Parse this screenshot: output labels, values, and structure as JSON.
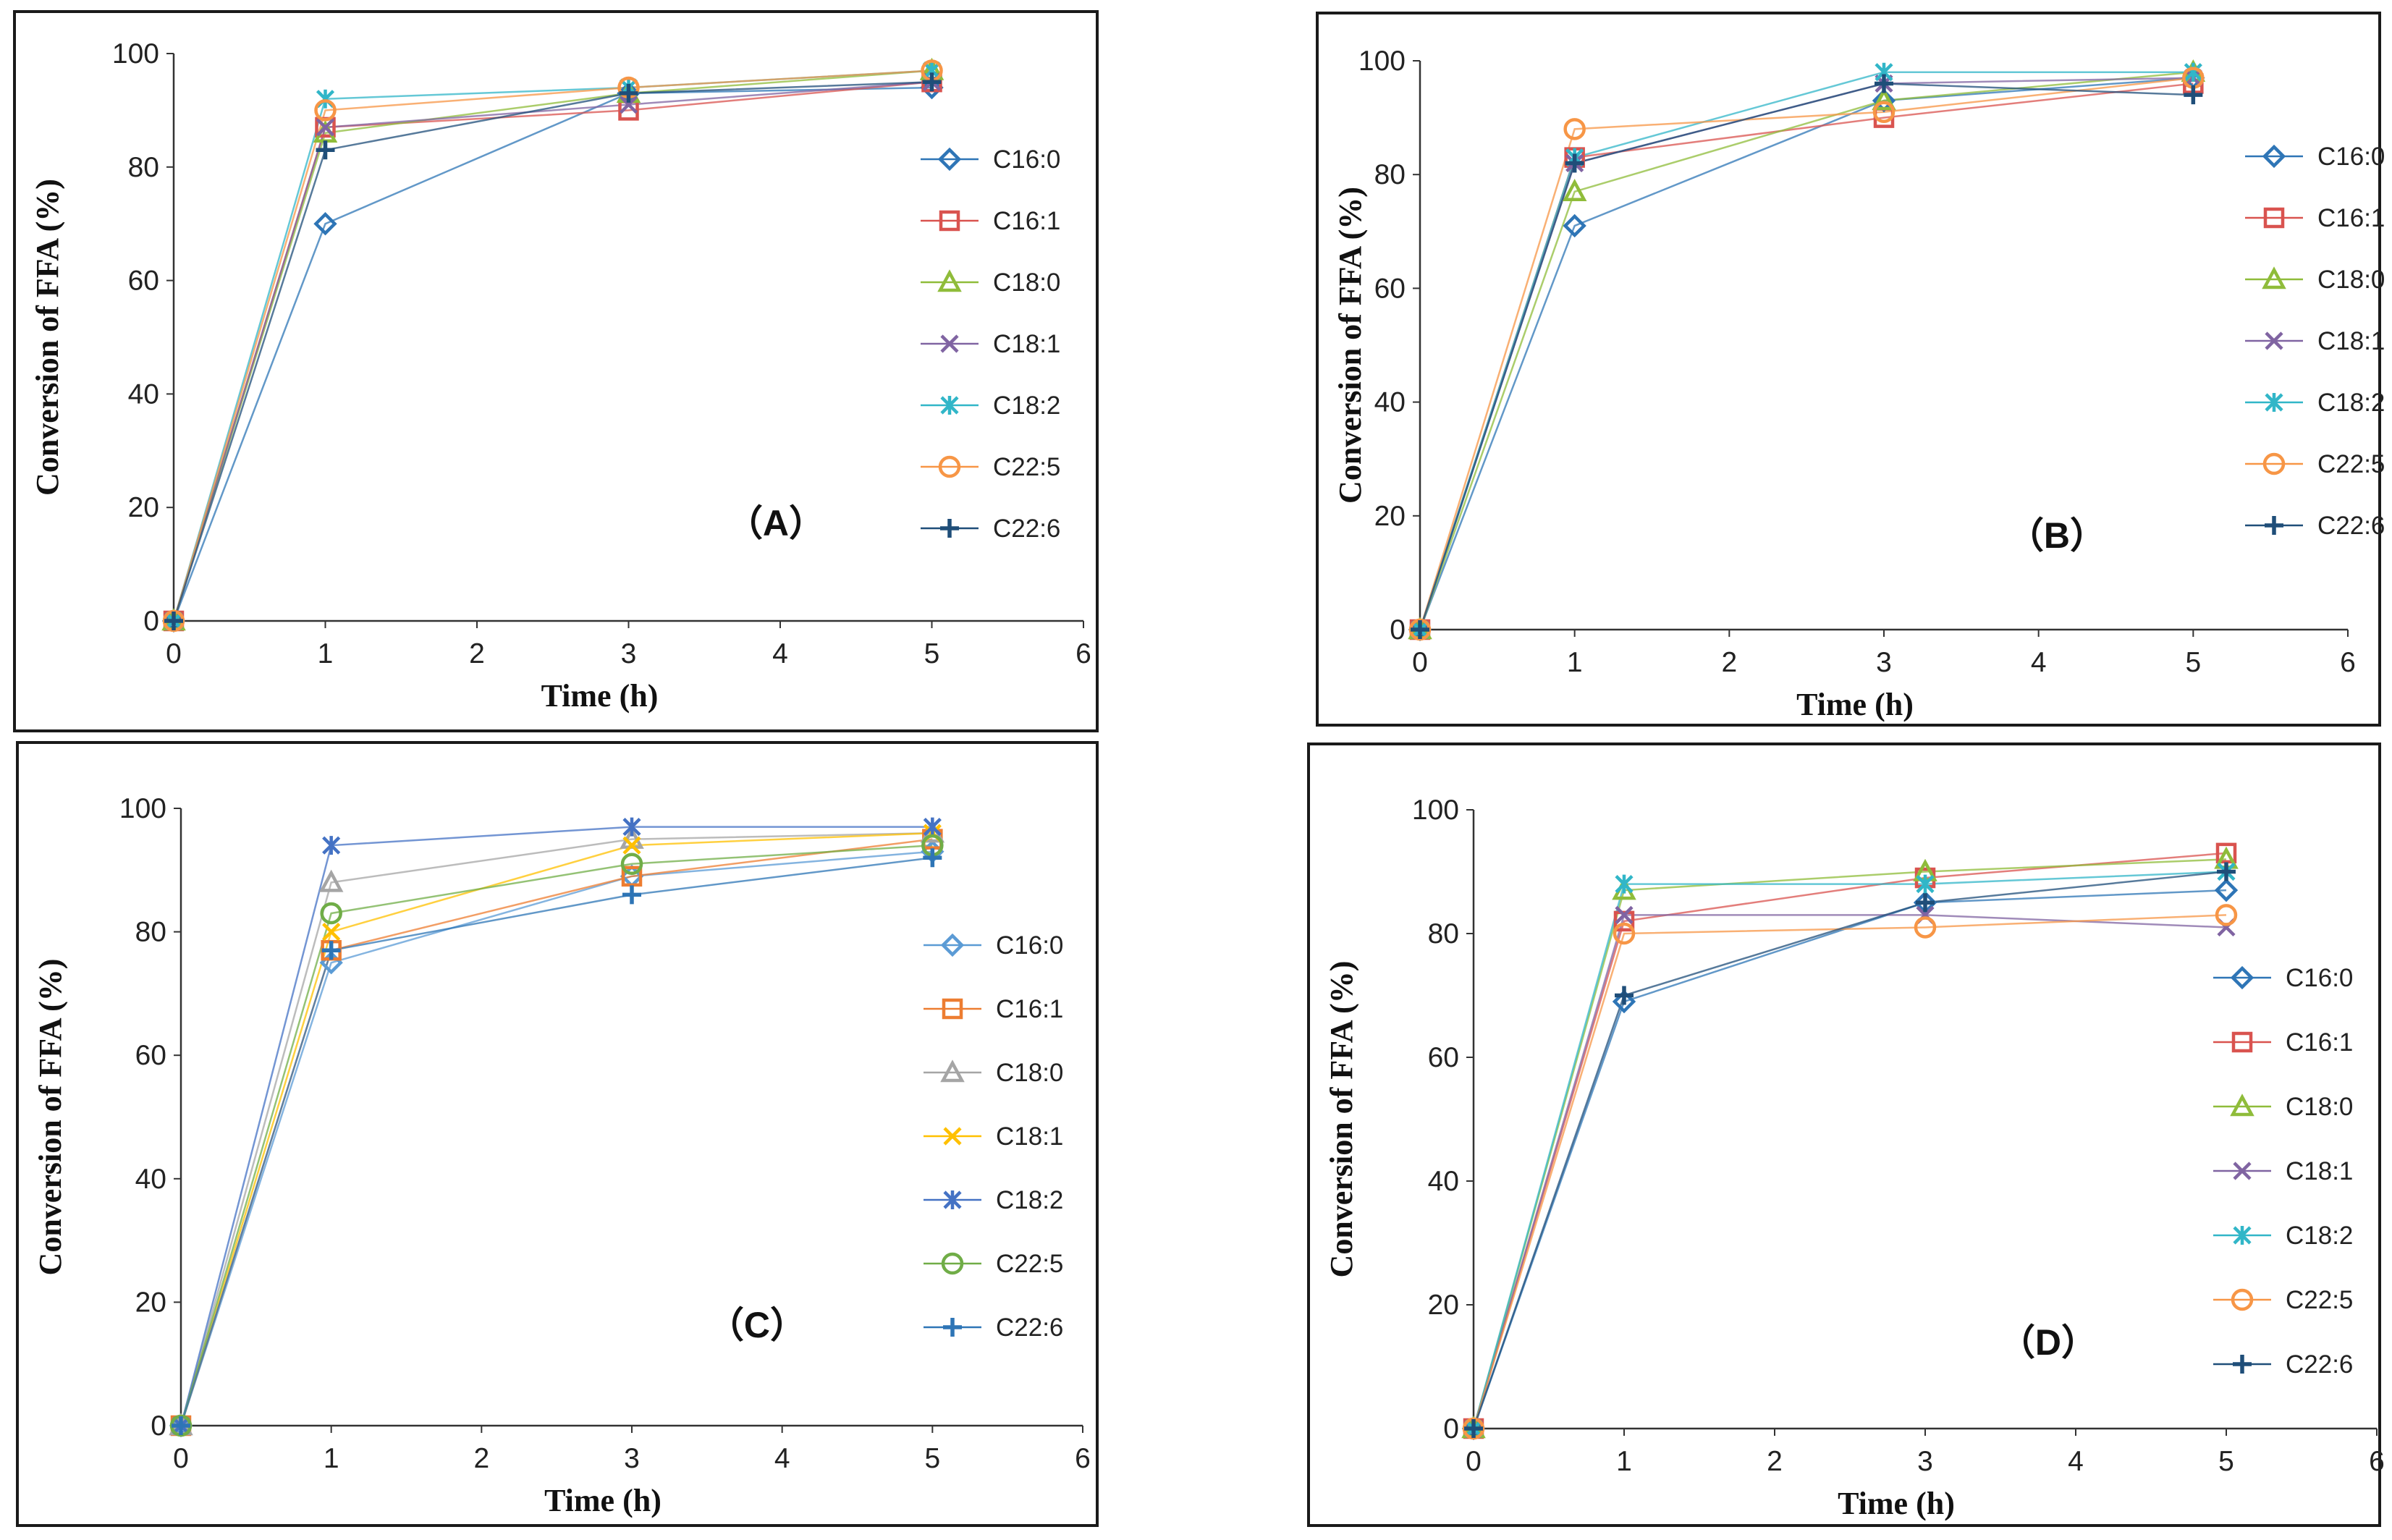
{
  "chart_data": [
    {
      "type": "line",
      "panel_label": "（A）",
      "xlabel": "Time  (h)",
      "ylabel": "Conversion of   FFA (%)",
      "xlim": [
        0,
        6
      ],
      "ylim": [
        0,
        100
      ],
      "xticks": [
        "0",
        "1",
        "2",
        "3",
        "4",
        "5",
        "6"
      ],
      "yticks": [
        "0",
        "20",
        "40",
        "60",
        "80",
        "100"
      ],
      "x": [
        0,
        1,
        3,
        5
      ],
      "legend_position": "right",
      "series": [
        {
          "name": "C16:0",
          "values": [
            0,
            70,
            93,
            94
          ],
          "color": "#2e75b6",
          "marker": "diamond"
        },
        {
          "name": "C16:1",
          "values": [
            0,
            87,
            90,
            95
          ],
          "color": "#d9534f",
          "marker": "square"
        },
        {
          "name": "C18:0",
          "values": [
            0,
            86,
            93,
            97
          ],
          "color": "#8fbc3a",
          "marker": "triangle"
        },
        {
          "name": "C18:1",
          "values": [
            0,
            87,
            91,
            95
          ],
          "color": "#8064a2",
          "marker": "x"
        },
        {
          "name": "C18:2",
          "values": [
            0,
            92,
            94,
            97
          ],
          "color": "#31b6c8",
          "marker": "star"
        },
        {
          "name": "C22:5",
          "values": [
            0,
            90,
            94,
            97
          ],
          "color": "#f79646",
          "marker": "circle"
        },
        {
          "name": "C22:6",
          "values": [
            0,
            83,
            93,
            95
          ],
          "color": "#1f4e79",
          "marker": "plus"
        }
      ]
    },
    {
      "type": "line",
      "panel_label": "（B）",
      "xlabel": "Time (h)",
      "ylabel": "Conversion of   FFA  (%)",
      "xlim": [
        0,
        6
      ],
      "ylim": [
        0,
        100
      ],
      "xticks": [
        "0",
        "1",
        "2",
        "3",
        "4",
        "5",
        "6"
      ],
      "yticks": [
        "0",
        "20",
        "40",
        "60",
        "80",
        "100"
      ],
      "x": [
        0,
        1,
        3,
        5
      ],
      "legend_position": "right",
      "series": [
        {
          "name": "C16:0",
          "values": [
            0,
            71,
            93,
            97
          ],
          "color": "#2e75b6",
          "marker": "diamond"
        },
        {
          "name": "C16:1",
          "values": [
            0,
            83,
            90,
            96
          ],
          "color": "#d9534f",
          "marker": "square"
        },
        {
          "name": "C18:0",
          "values": [
            0,
            77,
            93,
            98
          ],
          "color": "#8fbc3a",
          "marker": "triangle"
        },
        {
          "name": "C18:1",
          "values": [
            0,
            82,
            96,
            97
          ],
          "color": "#8064a2",
          "marker": "x"
        },
        {
          "name": "C18:2",
          "values": [
            0,
            83,
            98,
            98
          ],
          "color": "#31b6c8",
          "marker": "star"
        },
        {
          "name": "C22:5",
          "values": [
            0,
            88,
            91,
            97
          ],
          "color": "#f79646",
          "marker": "circle"
        },
        {
          "name": "C22:6",
          "values": [
            0,
            82,
            96,
            94
          ],
          "color": "#1f4e79",
          "marker": "plus"
        }
      ]
    },
    {
      "type": "line",
      "panel_label": "（C）",
      "xlabel": "Time (h)",
      "ylabel": "Conversion of   FFA (%)",
      "xlim": [
        0,
        6
      ],
      "ylim": [
        0,
        100
      ],
      "xticks": [
        "0",
        "1",
        "2",
        "3",
        "4",
        "5",
        "6"
      ],
      "yticks": [
        "0",
        "20",
        "40",
        "60",
        "80",
        "100"
      ],
      "x": [
        0,
        1,
        3,
        5
      ],
      "legend_position": "right",
      "series": [
        {
          "name": "C16:0",
          "values": [
            0,
            75,
            89,
            93
          ],
          "color": "#5b9bd5",
          "marker": "diamond"
        },
        {
          "name": "C16:1",
          "values": [
            0,
            77,
            89,
            95
          ],
          "color": "#ed7d31",
          "marker": "square"
        },
        {
          "name": "C18:0",
          "values": [
            0,
            88,
            95,
            96
          ],
          "color": "#a5a5a5",
          "marker": "triangle"
        },
        {
          "name": "C18:1",
          "values": [
            0,
            80,
            94,
            96
          ],
          "color": "#ffc000",
          "marker": "x"
        },
        {
          "name": "C18:2",
          "values": [
            0,
            94,
            97,
            97
          ],
          "color": "#4472c4",
          "marker": "star"
        },
        {
          "name": "C22:5",
          "values": [
            0,
            83,
            91,
            94
          ],
          "color": "#70ad47",
          "marker": "circle"
        },
        {
          "name": "C22:6",
          "values": [
            0,
            77,
            86,
            92
          ],
          "color": "#2e75b6",
          "marker": "plus"
        }
      ]
    },
    {
      "type": "line",
      "panel_label": "（D）",
      "xlabel": "Time (h)",
      "ylabel": "Conversion of   FFA (%)",
      "xlim": [
        0,
        6
      ],
      "ylim": [
        0,
        100
      ],
      "xticks": [
        "0",
        "1",
        "2",
        "3",
        "4",
        "5",
        "6"
      ],
      "yticks": [
        "0",
        "20",
        "40",
        "60",
        "80",
        "100"
      ],
      "x": [
        0,
        1,
        3,
        5
      ],
      "legend_position": "right",
      "series": [
        {
          "name": "C16:0",
          "values": [
            0,
            69,
            85,
            87
          ],
          "color": "#2e75b6",
          "marker": "diamond"
        },
        {
          "name": "C16:1",
          "values": [
            0,
            82,
            89,
            93
          ],
          "color": "#d9534f",
          "marker": "square"
        },
        {
          "name": "C18:0",
          "values": [
            0,
            87,
            90,
            92
          ],
          "color": "#8fbc3a",
          "marker": "triangle"
        },
        {
          "name": "C18:1",
          "values": [
            0,
            83,
            83,
            81
          ],
          "color": "#8064a2",
          "marker": "x"
        },
        {
          "name": "C18:2",
          "values": [
            0,
            88,
            88,
            90
          ],
          "color": "#31b6c8",
          "marker": "star"
        },
        {
          "name": "C22:5",
          "values": [
            0,
            80,
            81,
            83
          ],
          "color": "#f79646",
          "marker": "circle"
        },
        {
          "name": "C22:6",
          "values": [
            0,
            70,
            85,
            90
          ],
          "color": "#1f4e79",
          "marker": "plus"
        }
      ]
    }
  ]
}
